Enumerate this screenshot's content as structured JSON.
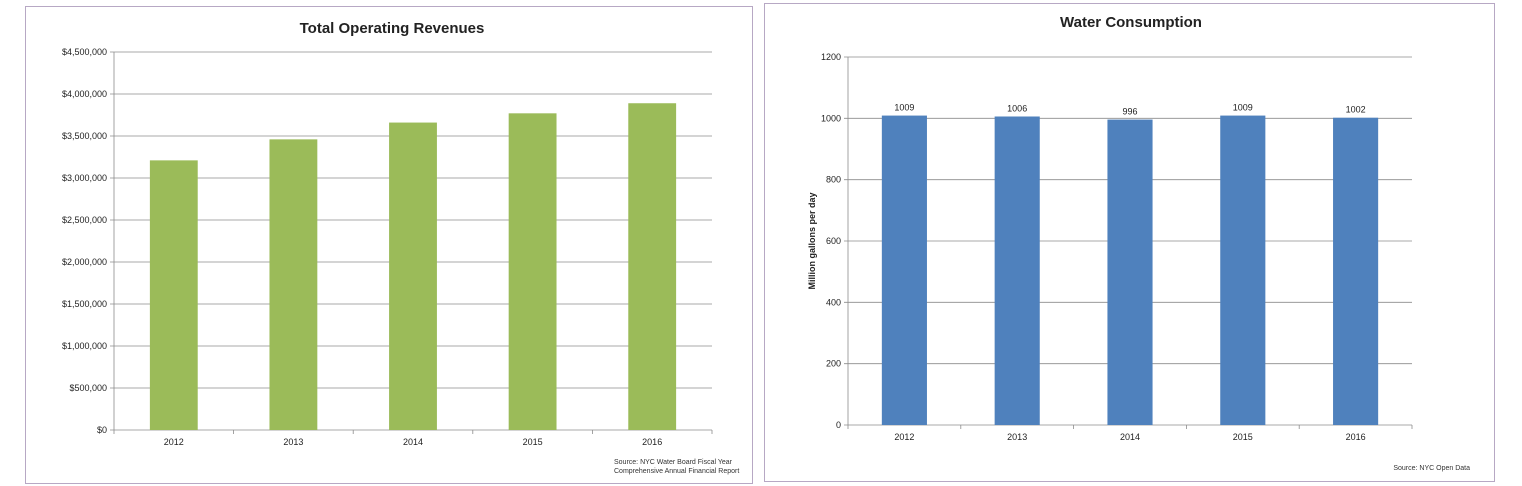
{
  "chart_data": [
    {
      "type": "bar",
      "title": "Total Operating Revenues",
      "categories": [
        "2012",
        "2013",
        "2014",
        "2015",
        "2016"
      ],
      "values": [
        3210000,
        3460000,
        3660000,
        3770000,
        3890000
      ],
      "ylim": [
        0,
        4500000
      ],
      "yticks": [
        0,
        500000,
        1000000,
        1500000,
        2000000,
        2500000,
        3000000,
        3500000,
        4000000,
        4500000
      ],
      "ytick_labels": [
        "$0",
        "$500,000",
        "$1,000,000",
        "$1,500,000",
        "$2,000,000",
        "$2,500,000",
        "$3,000,000",
        "$3,500,000",
        "$4,000,000",
        "$4,500,000"
      ],
      "xlabel": "",
      "ylabel": "",
      "grid": true,
      "legend": "none",
      "color": "#9bbb59",
      "source_lines": [
        "Source:  NYC Water Board Fiscal Year",
        "Comprehensive Annual Financial Report"
      ]
    },
    {
      "type": "bar",
      "title": "Water Consumption",
      "categories": [
        "2012",
        "2013",
        "2014",
        "2015",
        "2016"
      ],
      "values": [
        1009,
        1006,
        996,
        1009,
        1002
      ],
      "data_labels": [
        "1009",
        "1006",
        "996",
        "1009",
        "1002"
      ],
      "ylim": [
        0,
        1200
      ],
      "yticks": [
        0,
        200,
        400,
        600,
        800,
        1000,
        1200
      ],
      "ytick_labels": [
        "0",
        "200",
        "400",
        "600",
        "800",
        "1000",
        "1200"
      ],
      "xlabel": "",
      "ylabel": "Million gallons per day",
      "grid": true,
      "legend": "none",
      "color": "#4f81bd",
      "source_lines": [
        "Source:  NYC Open Data"
      ]
    }
  ]
}
